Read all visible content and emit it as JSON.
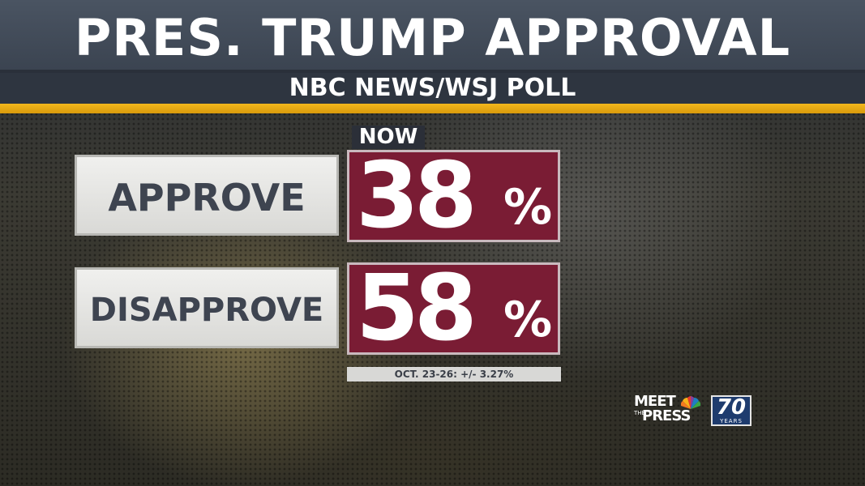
{
  "header": {
    "title": "PRES. TRUMP APPROVAL",
    "subtitle": "NBC NEWS/WSJ POLL"
  },
  "column_tag": "NOW",
  "rows": [
    {
      "label": "APPROVE",
      "value": "38",
      "unit": "%"
    },
    {
      "label": "DISAPPROVE",
      "value": "58",
      "unit": "%"
    }
  ],
  "footnote": "OCT. 23-26: +/- 3.27%",
  "logo": {
    "line1": "MEET",
    "line2_small": "THE",
    "line2": "PRESS",
    "badge_number": "70",
    "badge_caption": "YEARS"
  },
  "colors": {
    "accent_gold": "#f2b71c",
    "value_box": "#7a1c34",
    "header_bg": "#4a5462"
  }
}
